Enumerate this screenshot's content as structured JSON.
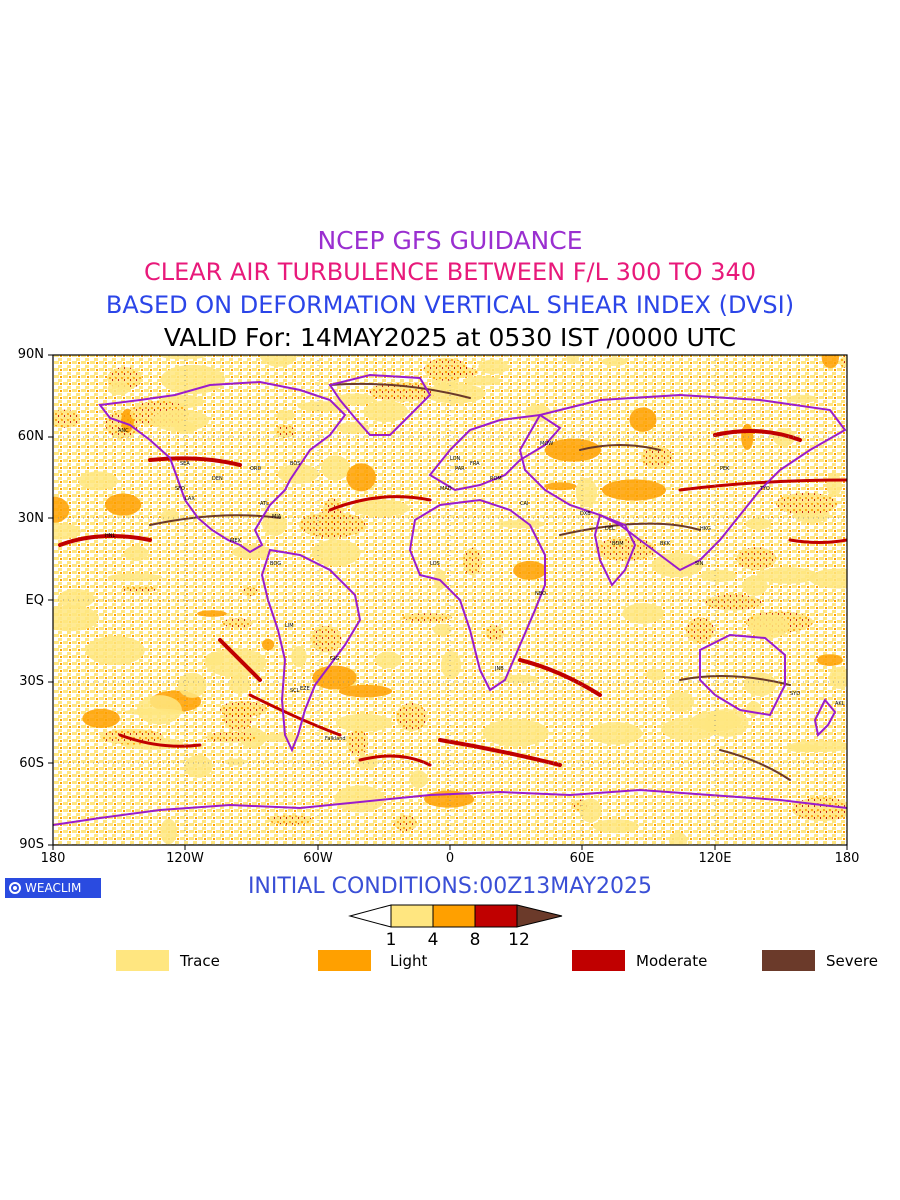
{
  "titles": {
    "line1": "NCEP GFS GUIDANCE",
    "line2": "CLEAR AIR TURBULENCE BETWEEN F/L 300 TO 340",
    "line3": "BASED ON DEFORMATION VERTICAL SHEAR INDEX (DVSI)",
    "line4": "VALID For: 14MAY2025 at 0530 IST /0000 UTC"
  },
  "colors": {
    "line1": "#9a2fd0",
    "line2": "#e8197a",
    "line3": "#2b45e8",
    "line4": "#000000",
    "init": "#3a4fd6",
    "trace": "#ffe680",
    "light": "#ffa000",
    "moderate": "#c00000",
    "severe": "#6b3a2a",
    "coast": "#9a1ccc"
  },
  "axes": {
    "lat_labels": [
      "90N",
      "60N",
      "30N",
      "EQ",
      "30S",
      "60S",
      "90S"
    ],
    "lon_labels": [
      "180",
      "120W",
      "60W",
      "0",
      "60E",
      "120E",
      "180"
    ]
  },
  "init_conditions": "INITIAL CONDITIONS:00Z13MAY2025",
  "logo": {
    "text": "WEACLIM",
    "icon": "circle-logo-icon"
  },
  "colorbar": {
    "ticks": [
      "1",
      "4",
      "8",
      "12"
    ]
  },
  "legend": [
    {
      "label": "Trace",
      "color": "#ffe680"
    },
    {
      "label": "Light",
      "color": "#ffa000"
    },
    {
      "label": "Moderate",
      "color": "#c00000"
    },
    {
      "label": "Severe",
      "color": "#6b3a2a"
    }
  ],
  "station_labels": [
    "ANC",
    "SEA",
    "SFO",
    "LAX",
    "DEN",
    "ORD",
    "ATL",
    "MIA",
    "BOS",
    "HNL",
    "MEX",
    "BOG",
    "LIM",
    "GIG",
    "EZE",
    "SCL",
    "LON",
    "PAR",
    "FRA",
    "MAD",
    "ROM",
    "CAI",
    "DXB",
    "DEL",
    "BOM",
    "BKK",
    "HKG",
    "TYO",
    "PEK",
    "SIN",
    "SYD",
    "AKL",
    "JNB",
    "NBO",
    "LOS",
    "MOW",
    "Falkland"
  ]
}
